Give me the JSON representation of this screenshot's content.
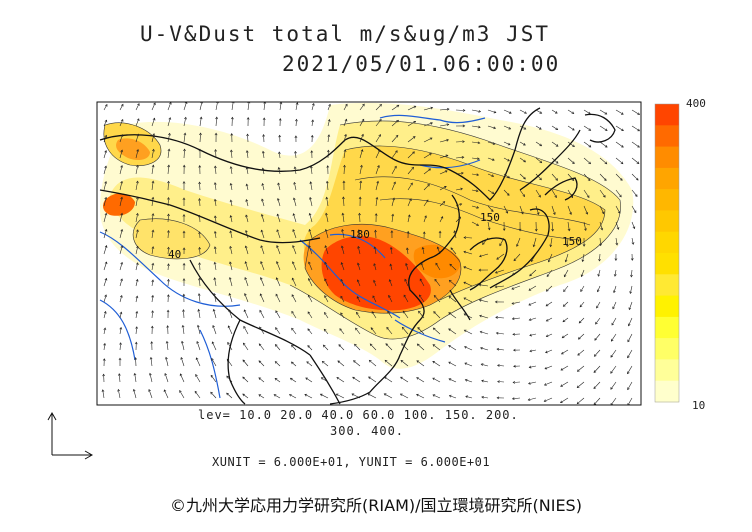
{
  "title": {
    "line1": "U-V&Dust total m/s&ug/m3 JST",
    "line2": "2021/05/01.06:00:00"
  },
  "levels": {
    "line1": "lev= 10.0 20.0 40.0 60.0 100. 150. 200.",
    "line2": "300. 400."
  },
  "units": "XUNIT = 6.000E+01, YUNIT = 6.000E+01",
  "credit": "©九州大学応用力学研究所(RIAM)/国立環境研究所(NIES)",
  "colorbar": {
    "max_label": "400",
    "min_label": "10",
    "colors": [
      "#ff4500",
      "#ff6a00",
      "#ff8c00",
      "#ffa500",
      "#ffb700",
      "#ffc800",
      "#ffd700",
      "#ffe000",
      "#ffe933",
      "#fff200",
      "#ffff33",
      "#ffff66",
      "#ffff99",
      "#ffffcc"
    ]
  },
  "contour_labels": [
    {
      "text": "150"
    },
    {
      "text": "150"
    },
    {
      "text": "180"
    },
    {
      "text": "40"
    }
  ]
}
